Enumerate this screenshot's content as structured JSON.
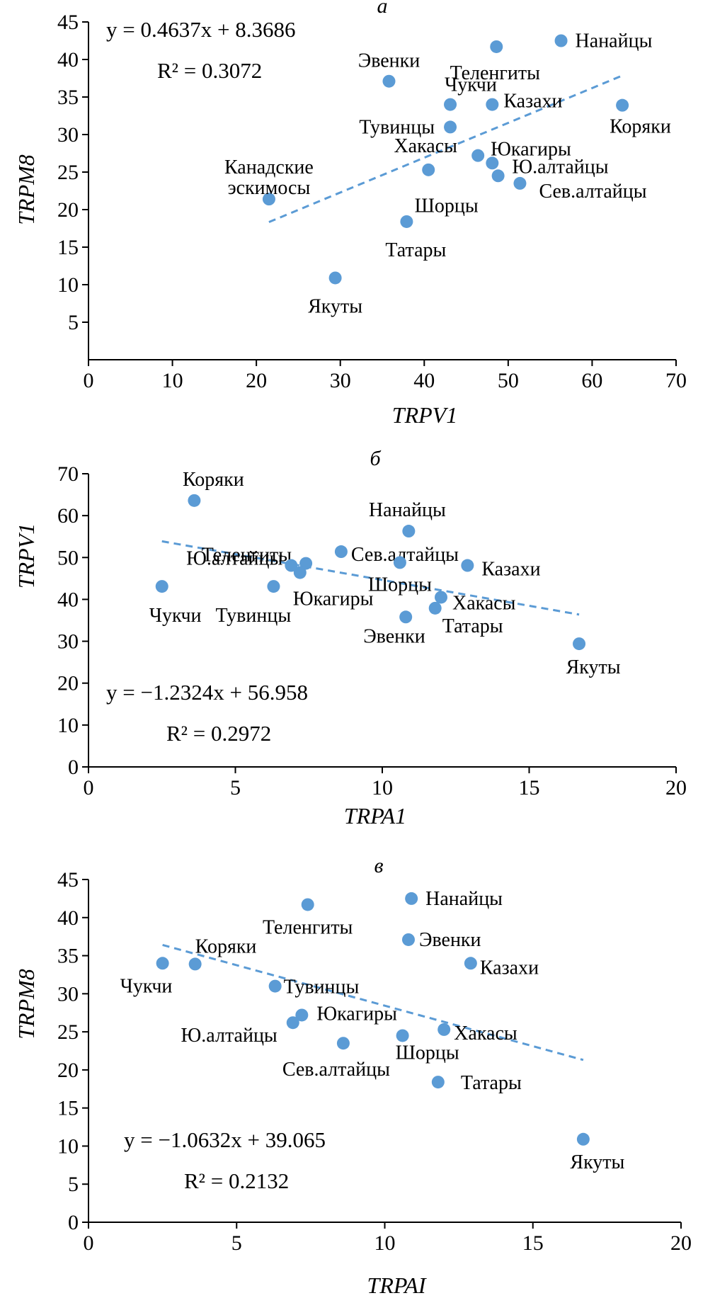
{
  "colors": {
    "point": "#5b9bd5",
    "trendline": "#5b9bd5",
    "axis": "#000000"
  },
  "chart_data": [
    {
      "type": "scatter",
      "panel_letter": "а",
      "xlabel": "TRPV1",
      "ylabel": "TRPM8",
      "xlim": [
        0,
        70
      ],
      "ylim": [
        0,
        45
      ],
      "xticks": [
        0,
        10,
        20,
        30,
        40,
        50,
        60,
        70
      ],
      "yticks": [
        5,
        10,
        15,
        20,
        25,
        30,
        35,
        40,
        45
      ],
      "equation": "y = 0.4637x + 8.3686",
      "r2": "R² = 0.3072",
      "trendline": {
        "slope": 0.4637,
        "intercept": 8.3686,
        "x_range": [
          21.5,
          63.5
        ]
      },
      "points": [
        {
          "label": "Нанайцы",
          "x": 56.3,
          "y": 42.5
        },
        {
          "label": "Теленгиты",
          "x": 48.6,
          "y": 41.7
        },
        {
          "label": "Эвенки",
          "x": 35.8,
          "y": 37.1
        },
        {
          "label": "Чукчи",
          "x": 43.1,
          "y": 34.0
        },
        {
          "label": "Казахи",
          "x": 48.1,
          "y": 34.0
        },
        {
          "label": "Коряки",
          "x": 63.6,
          "y": 33.9
        },
        {
          "label": "Тувинцы",
          "x": 43.1,
          "y": 31.0
        },
        {
          "label": "Юкагиры",
          "x": 46.4,
          "y": 27.2
        },
        {
          "label": "Ю.алтайцы",
          "x": 48.1,
          "y": 26.2
        },
        {
          "label": "Хакасы",
          "x": 40.5,
          "y": 25.3
        },
        {
          "label": "Шорцы",
          "x": 48.8,
          "y": 24.5
        },
        {
          "label": "Сев.алтайцы",
          "x": 51.4,
          "y": 23.5
        },
        {
          "label": "Канадские эскимосы",
          "x": 21.5,
          "y": 21.4
        },
        {
          "label": "Татары",
          "x": 37.9,
          "y": 18.4
        },
        {
          "label": "Якуты",
          "x": 29.4,
          "y": 10.9
        }
      ]
    },
    {
      "type": "scatter",
      "panel_letter": "б",
      "xlabel": "TRPA1",
      "ylabel": "TRPV1",
      "xlim": [
        0,
        20
      ],
      "ylim": [
        0,
        70
      ],
      "xticks": [
        0,
        5,
        10,
        15,
        20
      ],
      "yticks": [
        0,
        10,
        20,
        30,
        40,
        50,
        60,
        70
      ],
      "equation": "y = −1.2324x + 56.958",
      "r2": "R² = 0.2972",
      "trendline": {
        "slope": -1.2324,
        "intercept": 56.958,
        "x_range": [
          2.5,
          16.7
        ]
      },
      "points": [
        {
          "label": "Коряки",
          "x": 3.6,
          "y": 63.6
        },
        {
          "label": "Нанайцы",
          "x": 10.9,
          "y": 56.3
        },
        {
          "label": "Сев.алтайцы",
          "x": 8.6,
          "y": 51.4
        },
        {
          "label": "Теленгиты",
          "x": 7.4,
          "y": 48.6
        },
        {
          "label": "Ю.алтайцы",
          "x": 6.9,
          "y": 48.1
        },
        {
          "label": "Шорцы",
          "x": 10.6,
          "y": 48.8
        },
        {
          "label": "Казахи",
          "x": 12.9,
          "y": 48.1
        },
        {
          "label": "Юкагиры",
          "x": 7.2,
          "y": 46.4
        },
        {
          "label": "Чукчи",
          "x": 2.5,
          "y": 43.1
        },
        {
          "label": "Тувинцы",
          "x": 6.3,
          "y": 43.1
        },
        {
          "label": "Хакасы",
          "x": 12.0,
          "y": 40.5
        },
        {
          "label": "Татары",
          "x": 11.8,
          "y": 37.9
        },
        {
          "label": "Эвенки",
          "x": 10.8,
          "y": 35.8
        },
        {
          "label": "Якуты",
          "x": 16.7,
          "y": 29.4
        }
      ]
    },
    {
      "type": "scatter",
      "panel_letter": "в",
      "xlabel": "TRPAI",
      "ylabel": "TRPM8",
      "xlim": [
        0,
        20
      ],
      "ylim": [
        0,
        45
      ],
      "xticks": [
        0,
        5,
        10,
        15,
        20
      ],
      "yticks": [
        0,
        5,
        10,
        15,
        20,
        25,
        30,
        35,
        40,
        45
      ],
      "equation": "y = −1.0632x + 39.065",
      "r2": "R² = 0.2132",
      "trendline": {
        "slope": -1.0632,
        "intercept": 39.065,
        "x_range": [
          2.5,
          16.7
        ]
      },
      "points": [
        {
          "label": "Нанайцы",
          "x": 10.9,
          "y": 42.5
        },
        {
          "label": "Теленгиты",
          "x": 7.4,
          "y": 41.7
        },
        {
          "label": "Эвенки",
          "x": 10.8,
          "y": 37.1
        },
        {
          "label": "Казахи",
          "x": 12.9,
          "y": 34.0
        },
        {
          "label": "Коряки",
          "x": 3.6,
          "y": 33.9
        },
        {
          "label": "Чукчи",
          "x": 2.5,
          "y": 34.0
        },
        {
          "label": "Тувинцы",
          "x": 6.3,
          "y": 31.0
        },
        {
          "label": "Юкагиры",
          "x": 7.2,
          "y": 27.2
        },
        {
          "label": "Ю.алтайцы",
          "x": 6.9,
          "y": 26.2
        },
        {
          "label": "Хакасы",
          "x": 12.0,
          "y": 25.3
        },
        {
          "label": "Шорцы",
          "x": 10.6,
          "y": 24.5
        },
        {
          "label": "Сев.алтайцы",
          "x": 8.6,
          "y": 23.5
        },
        {
          "label": "Татары",
          "x": 11.8,
          "y": 18.4
        },
        {
          "label": "Якуты",
          "x": 16.7,
          "y": 10.9
        }
      ]
    }
  ]
}
